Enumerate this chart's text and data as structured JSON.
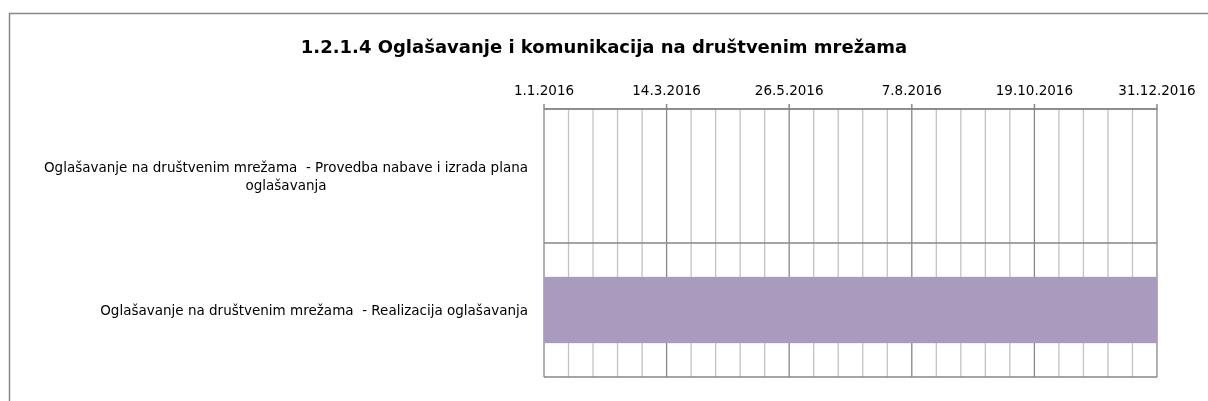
{
  "chart_data": {
    "type": "bar",
    "orientation": "horizontal",
    "title": "1.2.1.4 Oglašavanje i komunikacija na društvenim mrežama",
    "categories": [
      "Oglašavanje na društvenim mrežama  - Provedba nabave i izrada plana oglašavanja",
      "Oglašavanje na društvenim mrežama  - Realizacija oglašavanja"
    ],
    "base": [
      null,
      16801
    ],
    "values": [
      null,
      365
    ],
    "color": "#a99bbe",
    "xlim": [
      "2016-01-01",
      "2016-12-31"
    ],
    "xticks": [
      {
        "value": "2016-01-01",
        "label": "1.1.2016"
      },
      {
        "value": "2016-01-15T14:24",
        "label": null
      },
      {
        "value": "2016-01-30T04:48",
        "label": null
      },
      {
        "value": "2016-02-13T19:12",
        "label": null
      },
      {
        "value": "2016-02-28T09:36",
        "label": null
      },
      {
        "value": "2016-03-14",
        "label": "14.3.2016"
      },
      {
        "value": "2016-03-28T14:24",
        "label": null
      },
      {
        "value": "2016-04-12T04:48",
        "label": null
      },
      {
        "value": "2016-04-26T19:12",
        "label": null
      },
      {
        "value": "2016-05-11T09:36",
        "label": null
      },
      {
        "value": "2016-05-26",
        "label": "26.5.2016"
      },
      {
        "value": "2016-06-09T14:24",
        "label": null
      },
      {
        "value": "2016-06-24T04:48",
        "label": null
      },
      {
        "value": "2016-07-08T19:12",
        "label": null
      },
      {
        "value": "2016-07-23T09:36",
        "label": null
      },
      {
        "value": "2016-08-07",
        "label": "7.8.2016"
      },
      {
        "value": "2016-08-21T14:24",
        "label": null
      },
      {
        "value": "2016-09-05T04:48",
        "label": null
      },
      {
        "value": "2016-09-19T19:12",
        "label": null
      },
      {
        "value": "2016-10-04T09:36",
        "label": null
      },
      {
        "value": "2016-10-19",
        "label": "19.10.2016"
      },
      {
        "value": "2016-11-02T14:24",
        "label": null
      },
      {
        "value": "2016-11-17T04:48",
        "label": null
      },
      {
        "value": "2016-12-01T19:12",
        "label": null
      },
      {
        "value": "2016-12-16T09:36",
        "label": null
      },
      {
        "value": "2016-12-31",
        "label": "31.12.2016"
      }
    ],
    "grid": true
  }
}
